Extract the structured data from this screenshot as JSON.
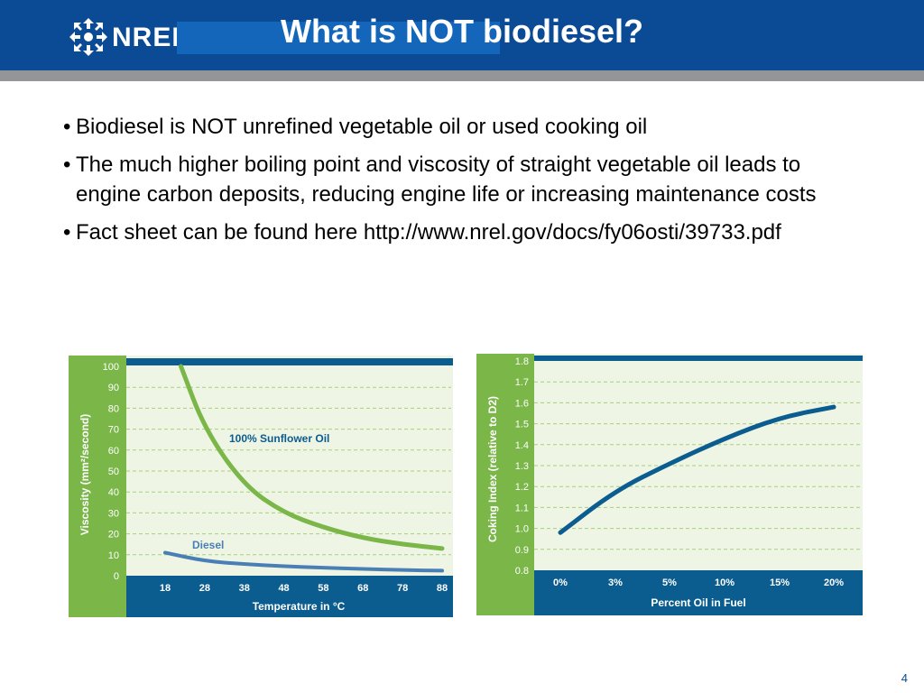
{
  "header": {
    "title": "What is NOT biodiesel?",
    "logo_text": "NREL"
  },
  "bullets": [
    "Biodiesel is NOT unrefined vegetable oil or used cooking oil",
    "The much higher boiling point and viscosity of straight vegetable oil leads to engine carbon deposits, reducing engine life or increasing maintenance costs",
    "Fact sheet can be found here http://www.nrel.gov/docs/fy06osti/39733.pdf"
  ],
  "page_number": "4",
  "colors": {
    "header_blue": "#0b4a95",
    "chart_green": "#7ab648",
    "chart_blue": "#0b5c8f",
    "chart_bg": "#eef5e4"
  },
  "chart_data": [
    {
      "type": "line",
      "title": "",
      "xlabel": "Temperature in °C",
      "ylabel": "Viscosity (mm²/second)",
      "x": [
        18,
        28,
        38,
        48,
        58,
        68,
        78,
        88
      ],
      "ylim": [
        0,
        100
      ],
      "yticks": [
        0,
        10,
        20,
        30,
        40,
        50,
        60,
        70,
        80,
        90,
        100
      ],
      "series": [
        {
          "name": "100% Sunflower Oil",
          "x": [
            22,
            28,
            38,
            48,
            58,
            68,
            78,
            88
          ],
          "values": [
            100,
            70,
            43,
            30,
            23,
            18,
            15,
            13
          ]
        },
        {
          "name": "Diesel",
          "x": [
            18,
            28,
            38,
            48,
            58,
            68,
            78,
            88
          ],
          "values": [
            11,
            7,
            5.5,
            4.5,
            3.8,
            3.2,
            2.7,
            2.4
          ]
        }
      ],
      "grid": true
    },
    {
      "type": "line",
      "title": "",
      "xlabel": "Percent Oil in Fuel",
      "ylabel": "Coking Index (relative to D2)",
      "categories": [
        "0%",
        "3%",
        "5%",
        "10%",
        "15%",
        "20%"
      ],
      "ylim": [
        0.8,
        1.8
      ],
      "yticks": [
        "0.8",
        "0.9",
        "1.0",
        "1.1",
        "1.2",
        "1.3",
        "1.4",
        "1.5",
        "1.6",
        "1.7",
        "1.8"
      ],
      "series": [
        {
          "name": "",
          "values": [
            0.98,
            1.18,
            1.31,
            1.43,
            1.53,
            1.58
          ]
        }
      ],
      "grid": true
    }
  ]
}
